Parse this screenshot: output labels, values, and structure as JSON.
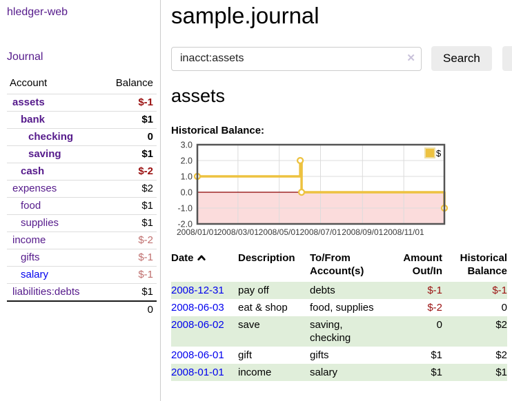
{
  "app": {
    "brand": "hledger-web"
  },
  "colors": {
    "link_purple": "#551a8b",
    "link_blue": "#0000ee",
    "negative_strong": "#9a1010",
    "negative_soft": "#c0706f",
    "row_stripe_green": "#e0eeda",
    "chart_line_gold": "#edc240",
    "chart_negative_bg": "#fbdcdc",
    "chart_zero_line": "#8b0000"
  },
  "sidebar": {
    "nav": {
      "journal_label": "Journal"
    },
    "accounts": {
      "headers": {
        "account": "Account",
        "balance": "Balance"
      },
      "rows": [
        {
          "name": "assets",
          "balance": "$-1"
        },
        {
          "name": "bank",
          "balance": "$1"
        },
        {
          "name": "checking",
          "balance": "0"
        },
        {
          "name": "saving",
          "balance": "$1"
        },
        {
          "name": "cash",
          "balance": "$-2"
        },
        {
          "name": "expenses",
          "balance": "$2"
        },
        {
          "name": "food",
          "balance": "$1"
        },
        {
          "name": "supplies",
          "balance": "$1"
        },
        {
          "name": "income",
          "balance": "$-2"
        },
        {
          "name": "gifts",
          "balance": "$-1"
        },
        {
          "name": "salary",
          "balance": "$-1"
        },
        {
          "name": "liabilities:debts",
          "balance": "$1"
        }
      ],
      "total": "0"
    }
  },
  "main": {
    "title": "sample.journal",
    "search": {
      "value": "inacct:assets",
      "clear_icon": "✕",
      "button_label": "Search",
      "help_label": "?"
    },
    "account_heading": "assets",
    "chart_heading": "Historical Balance:"
  },
  "chart_data": {
    "type": "line",
    "title": "Historical Balance:",
    "step": true,
    "ylim": [
      -2,
      3
    ],
    "xlim_days": [
      0,
      365
    ],
    "y_ticks": [
      3.0,
      2.0,
      1.0,
      0.0,
      -1.0,
      -2.0
    ],
    "x_ticks": [
      {
        "day": 0,
        "label": "2008/01/01"
      },
      {
        "day": 60,
        "label": "2008/03/01"
      },
      {
        "day": 121,
        "label": "2008/05/01"
      },
      {
        "day": 182,
        "label": "2008/07/01"
      },
      {
        "day": 244,
        "label": "2008/09/01"
      },
      {
        "day": 305,
        "label": "2008/11/01"
      }
    ],
    "series": [
      {
        "name": "$",
        "color": "#edc240",
        "points": [
          {
            "date": "2008-01-01",
            "day": 0,
            "value": 1
          },
          {
            "date": "2008-06-01",
            "day": 152,
            "value": 2
          },
          {
            "date": "2008-06-03",
            "day": 154,
            "value": 0
          },
          {
            "date": "2008-12-31",
            "day": 365,
            "value": -1
          }
        ]
      }
    ],
    "legend": {
      "label": "$",
      "position": "top-right"
    },
    "grid": true,
    "negative_region_color": "#fbdcdc",
    "zero_line_color": "#8b0000"
  },
  "register": {
    "headers": [
      {
        "line1": "Date",
        "line2": ""
      },
      {
        "line1": "Description",
        "line2": ""
      },
      {
        "line1": "To/From",
        "line2": "Account(s)"
      },
      {
        "line1": "Amount",
        "line2": "Out/In"
      },
      {
        "line1": "Historical",
        "line2": "Balance"
      }
    ],
    "rows": [
      {
        "date": "2008-12-31",
        "description": "pay off",
        "accounts": "debts",
        "amount": "$-1",
        "balance": "$-1"
      },
      {
        "date": "2008-06-03",
        "description": "eat & shop",
        "accounts": "food, supplies",
        "amount": "$-2",
        "balance": "0"
      },
      {
        "date": "2008-06-02",
        "description": "save",
        "accounts": "saving, checking",
        "amount": "0",
        "balance": "$2"
      },
      {
        "date": "2008-06-01",
        "description": "gift",
        "accounts": "gifts",
        "amount": "$1",
        "balance": "$2"
      },
      {
        "date": "2008-01-01",
        "description": "income",
        "accounts": "salary",
        "amount": "$1",
        "balance": "$1"
      }
    ]
  }
}
